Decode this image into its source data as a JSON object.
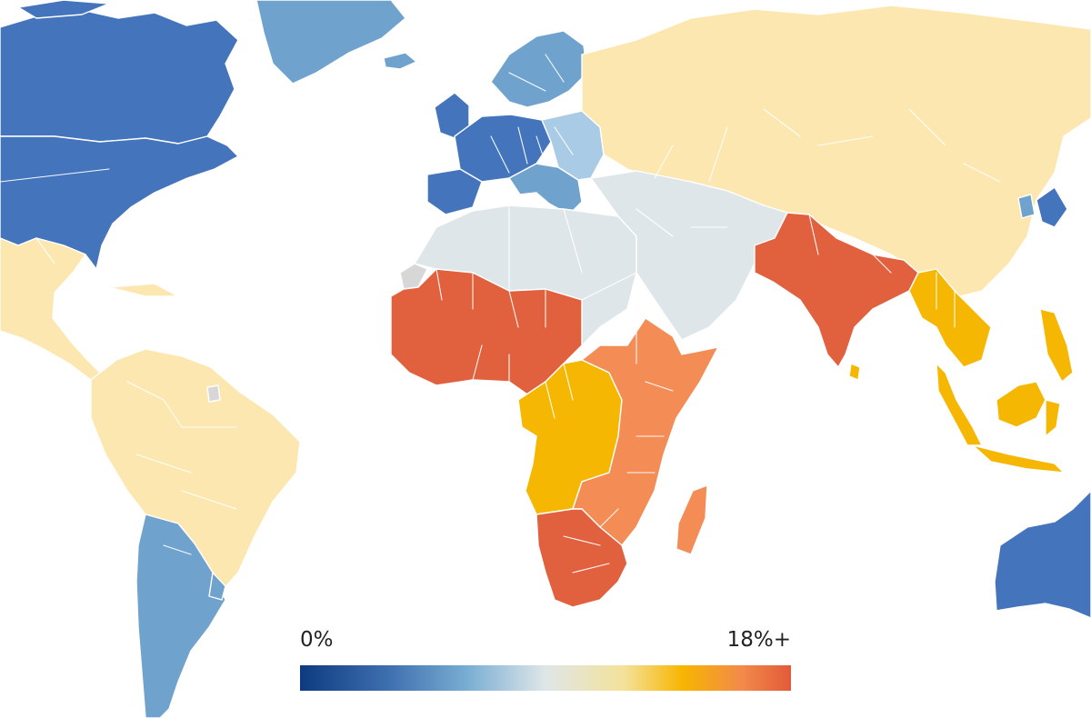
{
  "legend": {
    "min_label": "0%",
    "max_label": "18%+",
    "stops": [
      {
        "offset": 0.0,
        "color": "#0d3b80"
      },
      {
        "offset": 0.18,
        "color": "#3e6faf"
      },
      {
        "offset": 0.34,
        "color": "#79aed3"
      },
      {
        "offset": 0.5,
        "color": "#dfe6e8"
      },
      {
        "offset": 0.66,
        "color": "#f4e29a"
      },
      {
        "offset": 0.78,
        "color": "#f7b500"
      },
      {
        "offset": 0.9,
        "color": "#f28a4a"
      },
      {
        "offset": 1.0,
        "color": "#e25a3a"
      }
    ]
  },
  "colors": {
    "background": "#ffffff",
    "dark_blue": "#4474bb",
    "mid_blue": "#6fa2cd",
    "light_blue": "#a9cbe5",
    "pale_grey": "#dfe6e9",
    "light_yellow": "#fde7b0",
    "gold": "#f6b703",
    "light_orange": "#f38c55",
    "red_orange": "#e1603e",
    "no_data": "#d7d7d7"
  }
}
